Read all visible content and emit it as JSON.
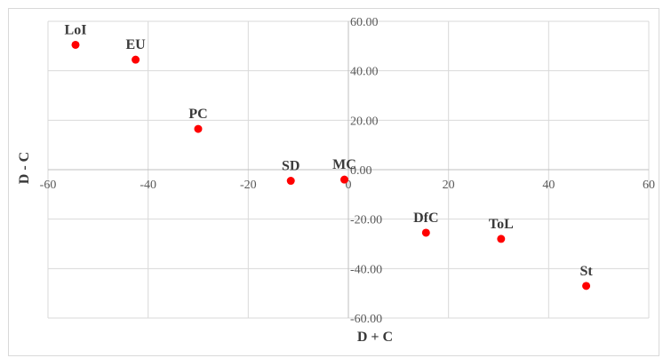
{
  "chart_data": {
    "type": "scatter",
    "xlabel": "D + C",
    "ylabel": "D - C",
    "xlim": [
      -60,
      60
    ],
    "ylim": [
      -60,
      60
    ],
    "x_ticks": [
      "-60",
      "-40",
      "-20",
      "0",
      "20",
      "40",
      "60"
    ],
    "y_ticks": [
      "60.00",
      "40.00",
      "20.00",
      "0.00",
      "-20.00",
      "-40.00",
      "-60.00"
    ],
    "grid": "vertical and horizontal major gridlines",
    "marker_color": "#ff0000",
    "points": [
      {
        "label": "LoI",
        "x": -54.5,
        "y": 50.5
      },
      {
        "label": "EU",
        "x": -42.5,
        "y": 44.5
      },
      {
        "label": "PC",
        "x": -30.0,
        "y": 16.5
      },
      {
        "label": "SD",
        "x": -11.5,
        "y": -4.5
      },
      {
        "label": "MC",
        "x": -0.8,
        "y": -4.0
      },
      {
        "label": "DfC",
        "x": 15.5,
        "y": -25.5
      },
      {
        "label": "ToL",
        "x": 30.5,
        "y": -28.0
      },
      {
        "label": "St",
        "x": 47.5,
        "y": -47.0
      }
    ]
  }
}
